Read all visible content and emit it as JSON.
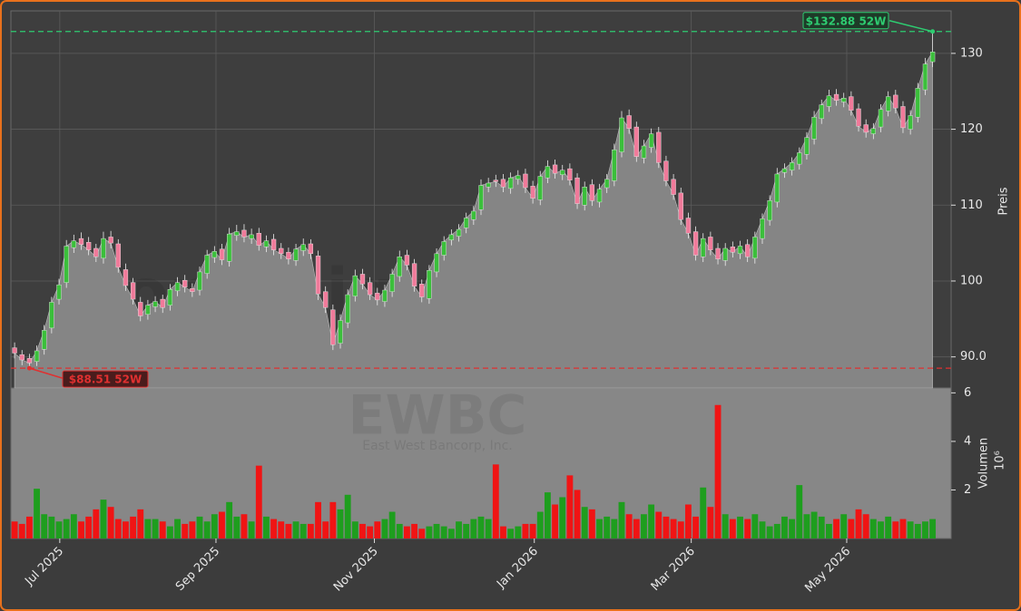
{
  "chart_data": {
    "type": "candlestick",
    "watermark": "forexsignale.trade",
    "ticker": "EWBC",
    "company": "East West Bancorp, Inc.",
    "ylabel": "Preis",
    "grid": true,
    "up_color": "#1e9e1e",
    "down_color": "#f01414",
    "area_color": "#858585",
    "categories": [
      null,
      null,
      null,
      null,
      null,
      null,
      null,
      null,
      null,
      null,
      null,
      null,
      null,
      null,
      null,
      null,
      null,
      null,
      null,
      null,
      null,
      null,
      null,
      null,
      null,
      null,
      null,
      null,
      null,
      null,
      null,
      null,
      null,
      null,
      null,
      null,
      null,
      null,
      null,
      null,
      null,
      null,
      null,
      null,
      null,
      null,
      null,
      null,
      null,
      null,
      null,
      null,
      null,
      null,
      null,
      null,
      null,
      null,
      null,
      null,
      null,
      null,
      null,
      null,
      null,
      null,
      null,
      null,
      null,
      null,
      null,
      null,
      null,
      null,
      null,
      null,
      null,
      null,
      null,
      null,
      null,
      null,
      null,
      null,
      null,
      null,
      null,
      null,
      null,
      null,
      null,
      null,
      null,
      null,
      null,
      null,
      null,
      null,
      null,
      null,
      null,
      null,
      null,
      null,
      null,
      null,
      null,
      null,
      null,
      null,
      null,
      null,
      null,
      null,
      null,
      null,
      null,
      null,
      null,
      null,
      null,
      null,
      null,
      null,
      null
    ],
    "open": [
      91.2,
      90.3,
      89.8,
      89.4,
      91.0,
      93.8,
      97.6,
      99.8,
      104.4,
      105.6,
      105.1,
      104.3,
      103.0,
      105.8,
      104.9,
      101.5,
      99.8,
      97.2,
      95.6,
      96.6,
      97.6,
      96.8,
      98.7,
      100.1,
      99.0,
      98.8,
      101.0,
      103.1,
      104.2,
      102.6,
      106.0,
      106.7,
      105.6,
      106.3,
      104.5,
      105.5,
      104.3,
      103.8,
      102.7,
      104.0,
      104.9,
      103.3,
      98.6,
      96.2,
      91.8,
      94.5,
      98.0,
      100.9,
      99.8,
      98.4,
      97.3,
      98.6,
      100.6,
      103.4,
      102.3,
      99.6,
      97.7,
      101.2,
      103.4,
      105.4,
      105.9,
      107.0,
      108.1,
      109.4,
      112.4,
      113.3,
      113.4,
      112.2,
      113.4,
      114.1,
      112.5,
      110.7,
      113.6,
      115.3,
      114.0,
      114.8,
      113.6,
      110.0,
      112.7,
      110.4,
      112.3,
      113.2,
      117.0,
      121.8,
      120.3,
      116.2,
      117.6,
      119.6,
      115.8,
      113.4,
      111.6,
      108.3,
      106.5,
      103.2,
      105.8,
      104.3,
      102.7,
      104.5,
      103.6,
      104.8,
      103.0,
      105.6,
      108.0,
      110.4,
      114.3,
      114.6,
      115.4,
      116.7,
      118.7,
      121.4,
      123.0,
      124.6,
      123.6,
      124.3,
      122.7,
      120.6,
      119.4,
      120.3,
      122.4,
      124.5,
      123.0,
      120.0,
      121.6,
      125.2,
      128.9
    ],
    "high": [
      91.9,
      90.9,
      90.4,
      91.5,
      94.2,
      97.9,
      100.3,
      105.4,
      106.1,
      106.4,
      105.8,
      104.9,
      106.5,
      106.6,
      105.5,
      102.3,
      100.4,
      97.9,
      97.5,
      98.0,
      98.2,
      99.6,
      100.5,
      100.8,
      99.7,
      101.9,
      104.1,
      104.6,
      104.9,
      107.0,
      107.4,
      107.5,
      106.9,
      107.0,
      106.0,
      106.2,
      105.0,
      104.4,
      104.9,
      105.6,
      105.5,
      104.0,
      99.3,
      96.9,
      95.6,
      98.9,
      101.5,
      101.6,
      100.5,
      99.1,
      99.5,
      101.6,
      104.0,
      104.1,
      102.9,
      100.2,
      102.1,
      104.3,
      105.9,
      106.8,
      107.5,
      109.0,
      109.9,
      113.4,
      113.6,
      114.0,
      114.1,
      114.3,
      114.6,
      114.8,
      113.2,
      114.5,
      115.9,
      116.0,
      115.3,
      115.5,
      114.2,
      113.1,
      113.4,
      112.8,
      114.1,
      118.1,
      122.4,
      122.6,
      121.0,
      118.6,
      120.1,
      120.3,
      116.5,
      114.1,
      112.3,
      109.0,
      107.2,
      106.3,
      106.5,
      105.0,
      105.0,
      105.2,
      105.3,
      105.5,
      106.5,
      108.9,
      111.3,
      114.9,
      115.5,
      116.3,
      117.6,
      119.6,
      122.4,
      123.9,
      125.2,
      125.3,
      124.8,
      125.0,
      123.4,
      121.3,
      120.8,
      123.3,
      125.0,
      125.2,
      123.7,
      122.5,
      126.1,
      129.4,
      132.88
    ],
    "low": [
      89.8,
      88.9,
      88.51,
      88.8,
      90.3,
      93.1,
      96.9,
      99.1,
      103.7,
      104.1,
      103.4,
      102.5,
      102.3,
      104.3,
      101.1,
      98.7,
      96.9,
      94.7,
      94.9,
      95.9,
      95.8,
      96.1,
      98.0,
      98.5,
      97.9,
      98.1,
      100.3,
      102.4,
      102.1,
      101.9,
      105.3,
      105.1,
      104.9,
      104.0,
      103.8,
      103.4,
      102.9,
      102.2,
      102.0,
      103.3,
      102.9,
      97.5,
      95.8,
      90.9,
      91.1,
      93.8,
      97.3,
      98.9,
      97.5,
      96.8,
      96.6,
      97.9,
      99.9,
      101.4,
      98.6,
      97.2,
      97.0,
      100.5,
      102.7,
      104.7,
      105.2,
      106.3,
      107.4,
      108.7,
      111.7,
      112.4,
      111.7,
      111.5,
      112.7,
      111.6,
      110.2,
      110.0,
      112.9,
      113.5,
      113.3,
      112.6,
      109.5,
      109.3,
      109.9,
      109.7,
      111.6,
      112.5,
      116.3,
      119.4,
      115.7,
      115.5,
      116.9,
      114.9,
      112.5,
      110.7,
      107.4,
      105.6,
      102.7,
      102.5,
      103.4,
      102.2,
      102.0,
      103.1,
      102.9,
      102.5,
      102.3,
      104.9,
      107.3,
      109.7,
      113.6,
      113.9,
      114.7,
      116.0,
      118.0,
      120.7,
      122.3,
      123.1,
      122.9,
      121.8,
      119.7,
      118.9,
      118.7,
      119.6,
      121.7,
      122.1,
      119.5,
      119.3,
      120.9,
      124.5,
      128.2
    ],
    "close": [
      90.5,
      89.6,
      89.2,
      90.8,
      93.5,
      97.2,
      99.5,
      104.6,
      105.3,
      104.8,
      104.1,
      103.2,
      105.6,
      105.0,
      101.8,
      99.4,
      97.6,
      95.4,
      96.8,
      97.3,
      96.5,
      98.9,
      99.8,
      99.2,
      98.6,
      101.2,
      103.4,
      103.9,
      102.8,
      106.2,
      106.5,
      105.8,
      106.1,
      104.7,
      105.3,
      104.1,
      103.6,
      102.9,
      104.2,
      104.8,
      103.6,
      98.3,
      96.5,
      91.6,
      94.8,
      98.2,
      100.7,
      99.6,
      98.2,
      97.5,
      98.8,
      100.9,
      103.2,
      102.1,
      99.3,
      97.9,
      101.4,
      103.6,
      105.2,
      106.1,
      106.8,
      108.3,
      109.2,
      112.6,
      112.9,
      113.1,
      112.4,
      113.6,
      113.9,
      112.3,
      110.9,
      113.8,
      115.1,
      114.2,
      114.6,
      113.3,
      110.2,
      112.4,
      110.6,
      112.1,
      113.4,
      117.3,
      121.5,
      120.1,
      116.4,
      117.8,
      119.4,
      115.6,
      113.2,
      111.4,
      108.1,
      106.3,
      103.4,
      105.6,
      104.1,
      102.9,
      104.3,
      103.8,
      104.6,
      103.2,
      105.8,
      108.2,
      110.6,
      114.1,
      114.8,
      115.6,
      116.9,
      118.9,
      121.6,
      123.2,
      124.4,
      123.8,
      124.1,
      122.5,
      120.4,
      119.6,
      120.1,
      122.6,
      124.3,
      122.8,
      120.2,
      121.8,
      125.4,
      128.6,
      130.2
    ],
    "ylim": [
      85.9,
      135.6
    ],
    "yticks": [
      {
        "value": 90,
        "label": "90.0"
      },
      100,
      110,
      120,
      130
    ],
    "xticks": [
      {
        "value": 6.1,
        "label": "Jul 2025"
      },
      {
        "value": 27.2,
        "label": "Sep 2025"
      },
      {
        "value": 48.6,
        "label": "Nov 2025"
      },
      {
        "value": 70.2,
        "label": "Jan 2026"
      },
      {
        "value": 91.4,
        "label": "Mar 2026"
      },
      {
        "value": 112.4,
        "label": "May 2026"
      }
    ],
    "high_line": {
      "value": 132.88,
      "label": "$132.88 52W",
      "color": "#2ecc71"
    },
    "low_line": {
      "value": 88.51,
      "label": "$88.51 52W",
      "color": "#e03030"
    },
    "volume": {
      "ylabel": "Volumen",
      "scale_label": "10⁶",
      "ylim": [
        0,
        6.2
      ],
      "yticks": [
        2,
        4,
        6
      ],
      "values": [
        0.7,
        0.6,
        0.9,
        2.05,
        1.0,
        0.9,
        0.7,
        0.8,
        1.0,
        0.7,
        0.9,
        1.2,
        1.6,
        1.3,
        0.8,
        0.7,
        0.9,
        1.2,
        0.8,
        0.8,
        0.7,
        0.5,
        0.8,
        0.6,
        0.7,
        0.9,
        0.7,
        1.0,
        1.1,
        1.5,
        0.9,
        1.0,
        0.7,
        3.0,
        0.9,
        0.8,
        0.7,
        0.6,
        0.7,
        0.6,
        0.6,
        1.5,
        0.7,
        1.5,
        1.2,
        1.8,
        0.7,
        0.6,
        0.5,
        0.7,
        0.8,
        1.1,
        0.6,
        0.5,
        0.6,
        0.4,
        0.5,
        0.6,
        0.5,
        0.4,
        0.7,
        0.6,
        0.8,
        0.9,
        0.8,
        3.05,
        0.5,
        0.4,
        0.5,
        0.6,
        0.6,
        1.1,
        1.9,
        1.4,
        1.7,
        2.6,
        2.0,
        1.3,
        1.2,
        0.8,
        0.9,
        0.8,
        1.5,
        1.0,
        0.8,
        1.0,
        1.4,
        1.1,
        0.9,
        0.8,
        0.7,
        1.4,
        0.9,
        2.1,
        1.3,
        5.5,
        1.0,
        0.8,
        0.9,
        0.8,
        1.0,
        0.7,
        0.5,
        0.6,
        0.9,
        0.8,
        2.2,
        1.0,
        1.1,
        0.9,
        0.6,
        0.8,
        1.0,
        0.8,
        1.2,
        1.0,
        0.8,
        0.7,
        0.9,
        0.7,
        0.8,
        0.7,
        0.6,
        0.7,
        0.8
      ]
    }
  }
}
